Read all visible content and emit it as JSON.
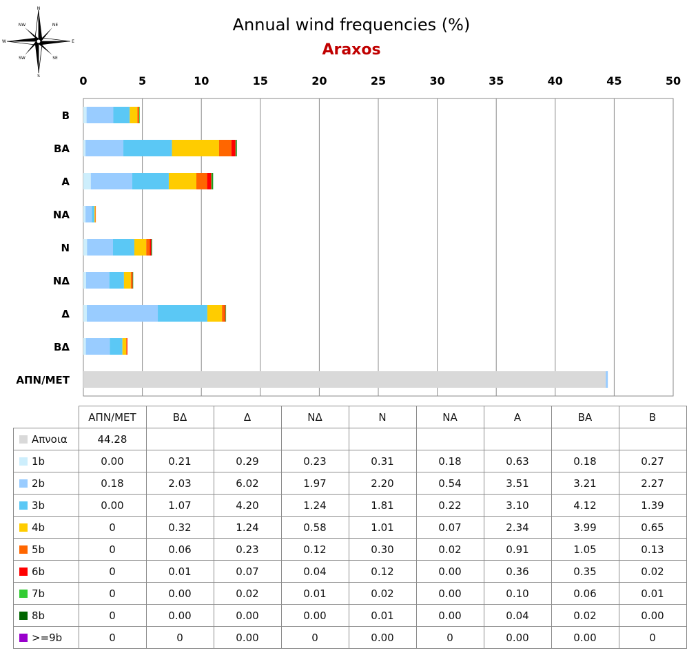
{
  "compass": {
    "n": "N",
    "ne": "NE",
    "e": "E",
    "se": "SE",
    "s": "S",
    "sw": "SW",
    "w": "W",
    "nw": "NW"
  },
  "chart_data": {
    "type": "bar",
    "orientation": "horizontal-stacked",
    "title": "Annual wind frequencies (%)",
    "subtitle": "Araxos",
    "xlim": [
      0,
      50
    ],
    "xticks": [
      "0",
      "5",
      "10",
      "15",
      "20",
      "25",
      "30",
      "35",
      "40",
      "45",
      "50"
    ],
    "grid": true,
    "categories": [
      "ΑΠΝ/ΜΕΤ",
      "ΒΔ",
      "Δ",
      "ΝΔ",
      "Ν",
      "ΝΑ",
      "Α",
      "ΒΑ",
      "Β"
    ],
    "series": [
      {
        "name": "Απνοια",
        "color": "#d9d9d9",
        "display": [
          "44.28",
          "",
          "",
          "",
          "",
          "",
          "",
          "",
          ""
        ],
        "values": [
          44.28,
          0,
          0,
          0,
          0,
          0,
          0,
          0,
          0
        ]
      },
      {
        "name": "1b",
        "color": "#cdeefc",
        "display": [
          "0.00",
          "0.21",
          "0.29",
          "0.23",
          "0.31",
          "0.18",
          "0.63",
          "0.18",
          "0.27"
        ],
        "values": [
          0.0,
          0.21,
          0.29,
          0.23,
          0.31,
          0.18,
          0.63,
          0.18,
          0.27
        ]
      },
      {
        "name": "2b",
        "color": "#99ccff",
        "display": [
          "0.18",
          "2.03",
          "6.02",
          "1.97",
          "2.20",
          "0.54",
          "3.51",
          "3.21",
          "2.27"
        ],
        "values": [
          0.18,
          2.03,
          6.02,
          1.97,
          2.2,
          0.54,
          3.51,
          3.21,
          2.27
        ]
      },
      {
        "name": "3b",
        "color": "#5bc8f5",
        "display": [
          "0.00",
          "1.07",
          "4.20",
          "1.24",
          "1.81",
          "0.22",
          "3.10",
          "4.12",
          "1.39"
        ],
        "values": [
          0.0,
          1.07,
          4.2,
          1.24,
          1.81,
          0.22,
          3.1,
          4.12,
          1.39
        ]
      },
      {
        "name": "4b",
        "color": "#ffcc00",
        "display": [
          "0",
          "0.32",
          "1.24",
          "0.58",
          "1.01",
          "0.07",
          "2.34",
          "3.99",
          "0.65"
        ],
        "values": [
          0,
          0.32,
          1.24,
          0.58,
          1.01,
          0.07,
          2.34,
          3.99,
          0.65
        ]
      },
      {
        "name": "5b",
        "color": "#ff6600",
        "display": [
          "0",
          "0.06",
          "0.23",
          "0.12",
          "0.30",
          "0.02",
          "0.91",
          "1.05",
          "0.13"
        ],
        "values": [
          0,
          0.06,
          0.23,
          0.12,
          0.3,
          0.02,
          0.91,
          1.05,
          0.13
        ]
      },
      {
        "name": "6b",
        "color": "#ff0000",
        "display": [
          "0",
          "0.01",
          "0.07",
          "0.04",
          "0.12",
          "0.00",
          "0.36",
          "0.35",
          "0.02"
        ],
        "values": [
          0,
          0.01,
          0.07,
          0.04,
          0.12,
          0.0,
          0.36,
          0.35,
          0.02
        ]
      },
      {
        "name": "7b",
        "color": "#33cc33",
        "display": [
          "0",
          "0.00",
          "0.02",
          "0.01",
          "0.02",
          "0.00",
          "0.10",
          "0.06",
          "0.01"
        ],
        "values": [
          0,
          0.0,
          0.02,
          0.01,
          0.02,
          0.0,
          0.1,
          0.06,
          0.01
        ]
      },
      {
        "name": "8b",
        "color": "#006600",
        "display": [
          "0",
          "0.00",
          "0.00",
          "0.00",
          "0.01",
          "0.00",
          "0.04",
          "0.02",
          "0.00"
        ],
        "values": [
          0,
          0.0,
          0.0,
          0.0,
          0.01,
          0.0,
          0.04,
          0.02,
          0.0
        ]
      },
      {
        "name": ">=9b",
        "color": "#9900cc",
        "display": [
          "0",
          "0",
          "0.00",
          "0",
          "0.00",
          "0",
          "0.00",
          "0.00",
          "0"
        ],
        "values": [
          0,
          0,
          0.0,
          0,
          0.0,
          0,
          0.0,
          0.0,
          0
        ]
      }
    ]
  }
}
